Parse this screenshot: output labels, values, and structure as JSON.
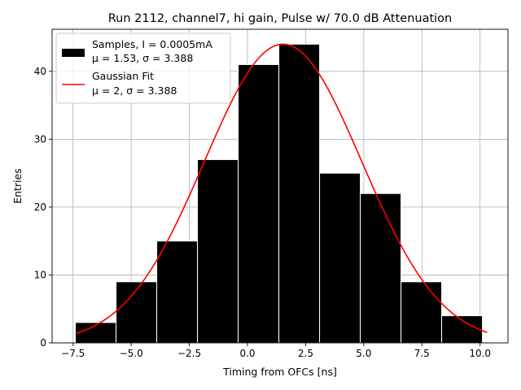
{
  "chart_data": {
    "type": "bar",
    "title": "Run 2112, channel7, hi gain, Pulse w/ 70.0 dB Attenuation",
    "xlabel": "Timing from OFCs [ns]",
    "ylabel": "Entries",
    "xlim": [
      -8.4,
      11.2
    ],
    "ylim": [
      0,
      46.2
    ],
    "grid": true,
    "legend_position": "top-left",
    "bins": [
      {
        "x0": -7.4,
        "x1": -5.65,
        "count": 3
      },
      {
        "x0": -5.65,
        "x1": -3.9,
        "count": 9
      },
      {
        "x0": -3.9,
        "x1": -2.15,
        "count": 15
      },
      {
        "x0": -2.15,
        "x1": -0.4,
        "count": 27
      },
      {
        "x0": -0.4,
        "x1": 1.35,
        "count": 41
      },
      {
        "x0": 1.35,
        "x1": 3.1,
        "count": 44
      },
      {
        "x0": 3.1,
        "x1": 4.85,
        "count": 25
      },
      {
        "x0": 4.85,
        "x1": 6.6,
        "count": 22
      },
      {
        "x0": 6.6,
        "x1": 8.35,
        "count": 9
      },
      {
        "x0": 8.35,
        "x1": 10.1,
        "count": 4
      }
    ],
    "fit": {
      "type": "gaussian",
      "amplitude": 44,
      "mu": 1.53,
      "sigma": 3.388,
      "x_range": [
        -7.4,
        10.3
      ]
    },
    "x_ticks": [
      -7.5,
      -5.0,
      -2.5,
      0.0,
      2.5,
      5.0,
      7.5,
      10.0
    ],
    "x_tick_labels": [
      "−7.5",
      "−5.0",
      "−2.5",
      "0.0",
      "2.5",
      "5.0",
      "7.5",
      "10.0"
    ],
    "y_ticks": [
      0,
      10,
      20,
      30,
      40
    ],
    "y_tick_labels": [
      "0",
      "10",
      "20",
      "30",
      "40"
    ],
    "series": [
      {
        "name_line1": "Samples, I = 0.0005mA",
        "name_line2": "μ = 1.53, σ = 3.388",
        "color": "#000000",
        "kind": "histogram"
      },
      {
        "name_line1": "Gaussian Fit",
        "name_line2": "μ = 2, σ = 3.388",
        "color": "#ff0000",
        "kind": "line"
      }
    ]
  }
}
